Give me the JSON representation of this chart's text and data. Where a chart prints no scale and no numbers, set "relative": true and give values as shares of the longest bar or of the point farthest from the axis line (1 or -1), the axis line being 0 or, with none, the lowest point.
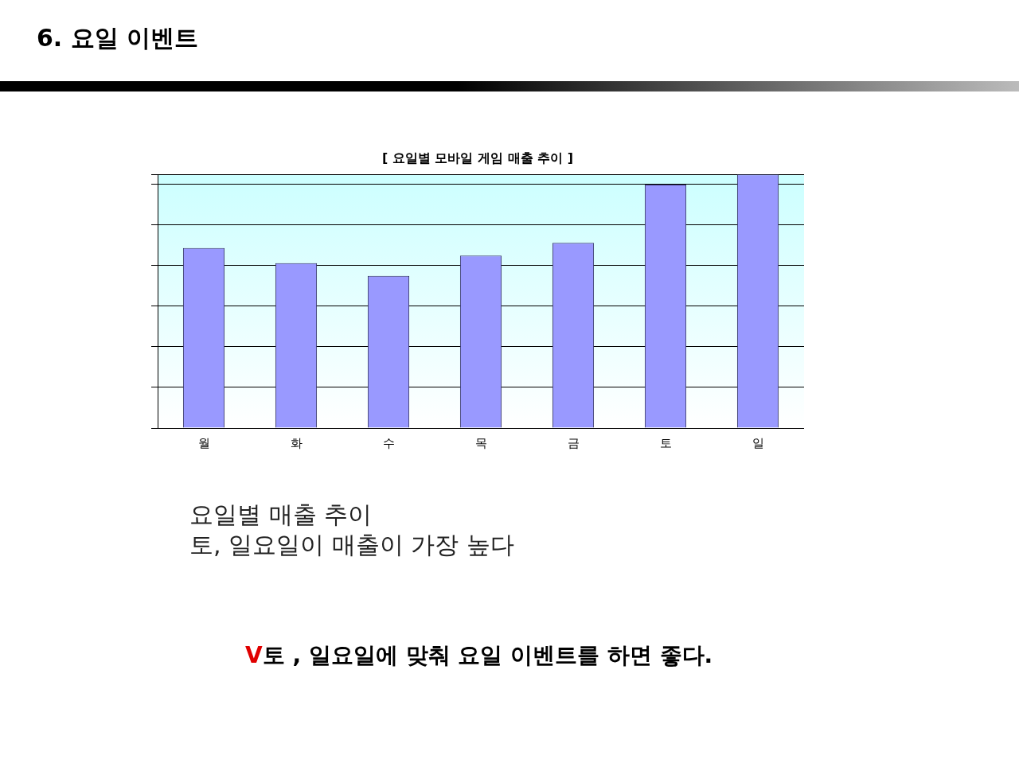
{
  "chart_data": {
    "type": "bar",
    "title": "6. 요일 이벤트",
    "subtitle": "[ 요일별 모바일 게임 매출 추이 ]",
    "categories": [
      "월",
      "화",
      "수",
      "목",
      "금",
      "토",
      "일"
    ],
    "values": [
      0.71,
      0.65,
      0.6,
      0.68,
      0.73,
      0.96,
      1
    ],
    "color": "#9999ff",
    "relative": true,
    "grid": "y",
    "legend": false,
    "annotations": [
      "요일별 매출 추이",
      "토, 일요일이 매출이 가장 높다",
      "V토 , 일요일에 맞춰 요일 이벤트를 하면 좋다."
    ]
  }
}
